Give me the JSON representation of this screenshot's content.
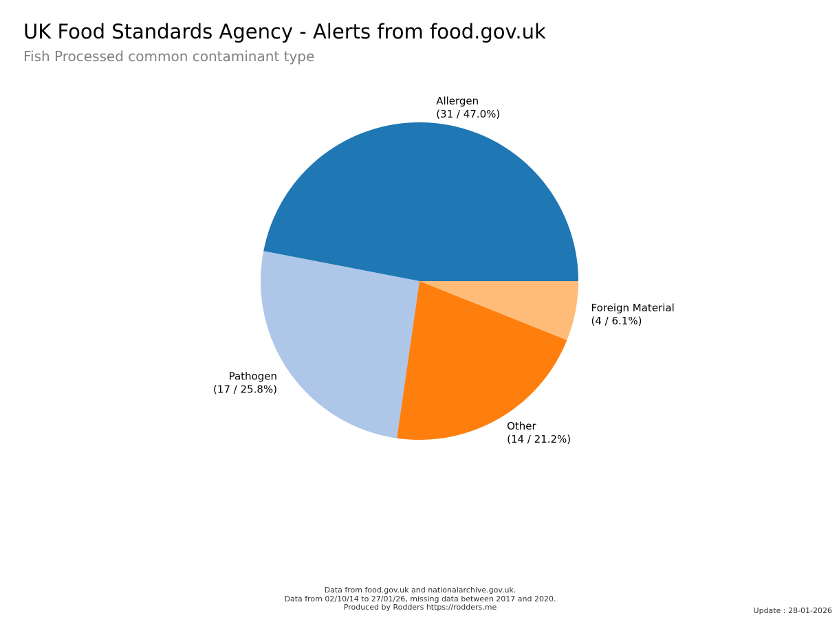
{
  "header": {
    "title": "UK Food Standards Agency - Alerts from food.gov.uk",
    "subtitle": "Fish Processed common contaminant type"
  },
  "footer": {
    "lines": [
      "Data from food.gov.uk and nationalarchive.gov.uk.",
      "Data from 02/10/14 to 27/01/26, missing data between 2017 and 2020.",
      "Produced by Rodders https://rodders.me"
    ],
    "update": "Update : 28-01-2026"
  },
  "chart_data": {
    "type": "pie",
    "title": "UK Food Standards Agency - Alerts from food.gov.uk",
    "subtitle": "Fish Processed common contaminant type",
    "start_angle_deg": 0,
    "direction": "counterclockwise",
    "slices": [
      {
        "label": "Allergen",
        "count": 31,
        "percent": 47.0,
        "value_label": "(31 / 47.0%)",
        "color": "#1f77b4"
      },
      {
        "label": "Pathogen",
        "count": 17,
        "percent": 25.8,
        "value_label": "(17 / 25.8%)",
        "color": "#aec7e8"
      },
      {
        "label": "Other",
        "count": 14,
        "percent": 21.2,
        "value_label": "(14 / 21.2%)",
        "color": "#ff7f0e"
      },
      {
        "label": "Foreign Material",
        "count": 4,
        "percent": 6.1,
        "value_label": "(4 / 6.1%)",
        "color": "#ffbb78"
      }
    ]
  }
}
